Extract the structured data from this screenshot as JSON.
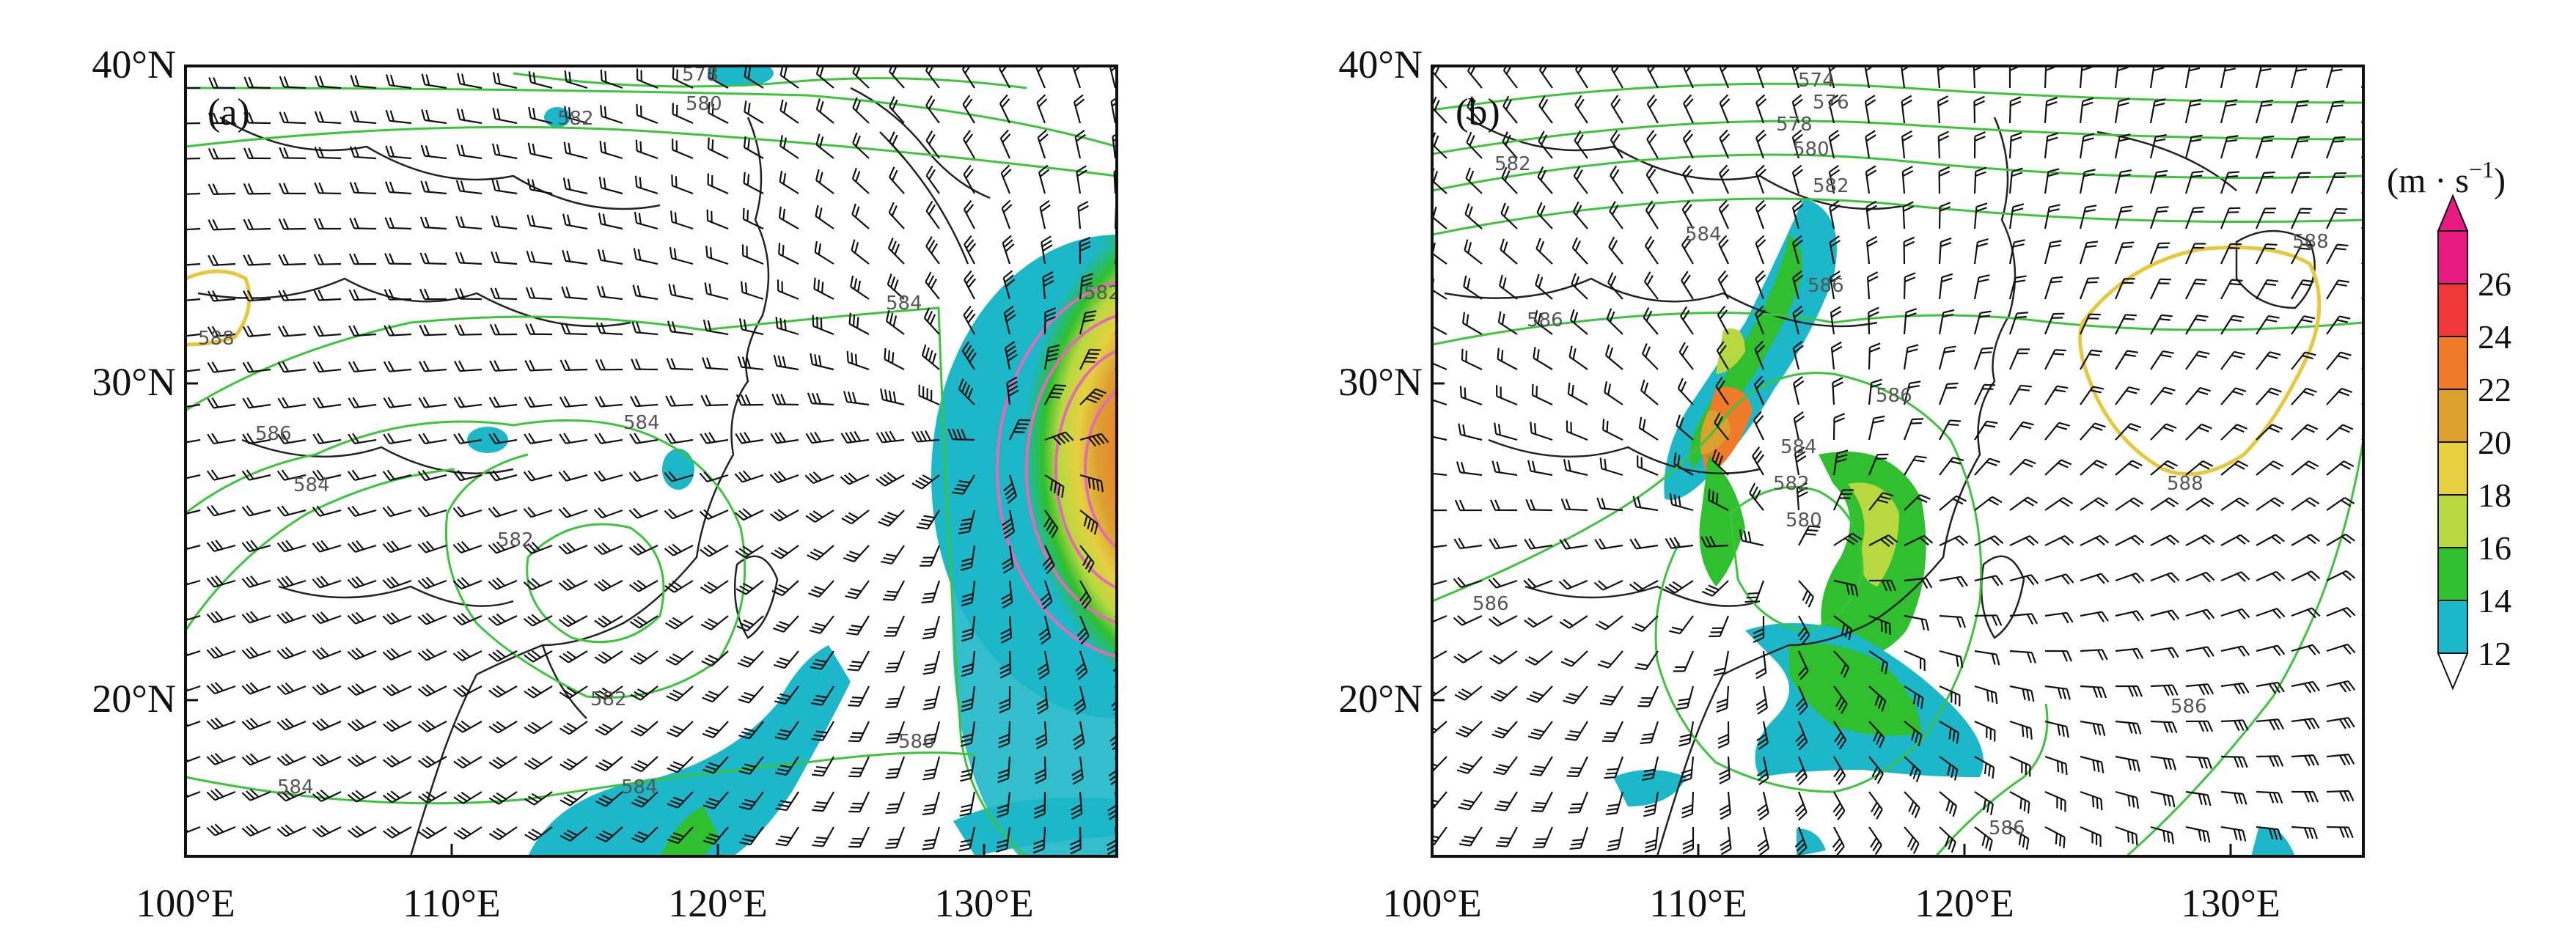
{
  "panels": [
    {
      "id": "a",
      "label": "(a)",
      "lon_range": [
        100,
        135
      ],
      "lat_range": [
        15,
        40
      ],
      "x_ticks": [
        "100°E",
        "110°E",
        "120°E",
        "130°E"
      ],
      "y_ticks": [
        "40°N",
        "30°N",
        "20°N"
      ],
      "contour_labels": [
        "578",
        "580",
        "582",
        "588",
        "584",
        "586",
        "584",
        "584",
        "582",
        "582",
        "586",
        "584",
        "584",
        "582"
      ]
    },
    {
      "id": "b",
      "label": "(b)",
      "lon_range": [
        100,
        135
      ],
      "lat_range": [
        15,
        40
      ],
      "x_ticks": [
        "100°E",
        "110°E",
        "120°E",
        "130°E"
      ],
      "y_ticks": [
        "40°N",
        "30°N",
        "20°N"
      ],
      "contour_labels": [
        "574",
        "576",
        "578",
        "580",
        "582",
        "582",
        "584",
        "586",
        "586",
        "586",
        "584",
        "582",
        "580",
        "586",
        "588",
        "588",
        "586",
        "586"
      ]
    }
  ],
  "colorbar": {
    "unit": "(m · s",
    "unit_sup": "−1",
    "unit_close": ")",
    "levels": [
      "26",
      "24",
      "22",
      "20",
      "18",
      "16",
      "14",
      "12"
    ],
    "colors": [
      "#e8197f",
      "#f03a3a",
      "#ee7a2a",
      "#dca030",
      "#e6d040",
      "#b8d840",
      "#2fbf2f",
      "#1cb7c8"
    ]
  },
  "colors": {
    "contour": "#3cc43c",
    "contour_588": "#e6c83a",
    "coast": "#222222",
    "barb": "#111111"
  }
}
